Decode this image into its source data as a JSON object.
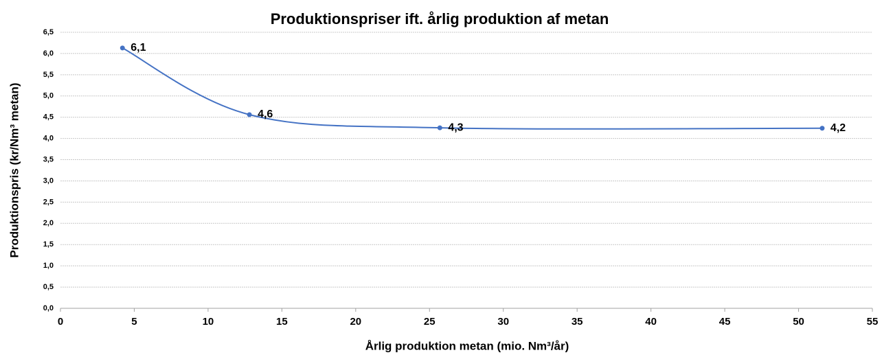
{
  "chart_data": {
    "type": "line",
    "smooth": true,
    "title": "Produktionspriser ift. årlig produktion af  metan",
    "x_label": "Årlig produktion metan (mio. Nm³/år)",
    "y_label": "Produktionspris (kr/Nm³ metan)",
    "x": [
      4.2,
      12.8,
      25.7,
      51.6
    ],
    "series": [
      {
        "name": "Produktionspris",
        "color": "#4472c4",
        "values": [
          6.13,
          4.56,
          4.25,
          4.24
        ],
        "value_labels": [
          "6,1",
          "4,6",
          "4,3",
          "4,2"
        ]
      }
    ],
    "xlim": [
      0,
      55
    ],
    "xticks": [
      0,
      5,
      10,
      15,
      20,
      25,
      30,
      35,
      40,
      45,
      50,
      55
    ],
    "ylim": [
      0,
      6.5
    ],
    "yticks": [
      {
        "value": 0,
        "label": "0,0"
      },
      {
        "value": 0.5,
        "label": "0,5"
      },
      {
        "value": 1,
        "label": "1,0"
      },
      {
        "value": 1.5,
        "label": "1,5"
      },
      {
        "value": 2,
        "label": "2,0"
      },
      {
        "value": 2.5,
        "label": "2,5"
      },
      {
        "value": 3,
        "label": "3,0"
      },
      {
        "value": 3.5,
        "label": "3,5"
      },
      {
        "value": 4,
        "label": "4,0"
      },
      {
        "value": 4.5,
        "label": "4,5"
      },
      {
        "value": 5,
        "label": "5,0"
      },
      {
        "value": 5.5,
        "label": "5,5"
      },
      {
        "value": 6,
        "label": "6,0"
      },
      {
        "value": 6.5,
        "label": "6,5"
      }
    ],
    "grid": true
  }
}
